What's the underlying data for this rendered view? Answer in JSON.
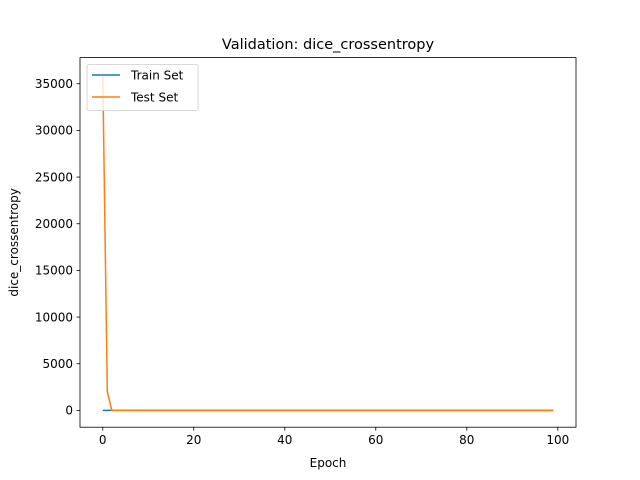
{
  "chart_data": {
    "type": "line",
    "title": "Validation: dice_crossentropy",
    "xlabel": "Epoch",
    "ylabel": "dice_crossentropy",
    "xlim": [
      -5,
      104
    ],
    "ylim": [
      -1800,
      37800
    ],
    "xticks": [
      0,
      20,
      40,
      60,
      80,
      100
    ],
    "yticks": [
      0,
      5000,
      10000,
      15000,
      20000,
      25000,
      30000,
      35000
    ],
    "legend": "top-left",
    "grid": false,
    "series": [
      {
        "name": "Train Set",
        "color": "#1f77b4",
        "x": [
          0,
          1,
          2,
          5,
          10,
          20,
          40,
          60,
          80,
          99
        ],
        "y": [
          0,
          0,
          0,
          0,
          0,
          0,
          0,
          0,
          0,
          0
        ]
      },
      {
        "name": "Test Set",
        "color": "#ff7f0e",
        "x": [
          0,
          1,
          2,
          5,
          10,
          20,
          40,
          60,
          80,
          99
        ],
        "y": [
          36000,
          2000,
          0,
          0,
          0,
          0,
          0,
          0,
          0,
          0
        ]
      }
    ]
  }
}
